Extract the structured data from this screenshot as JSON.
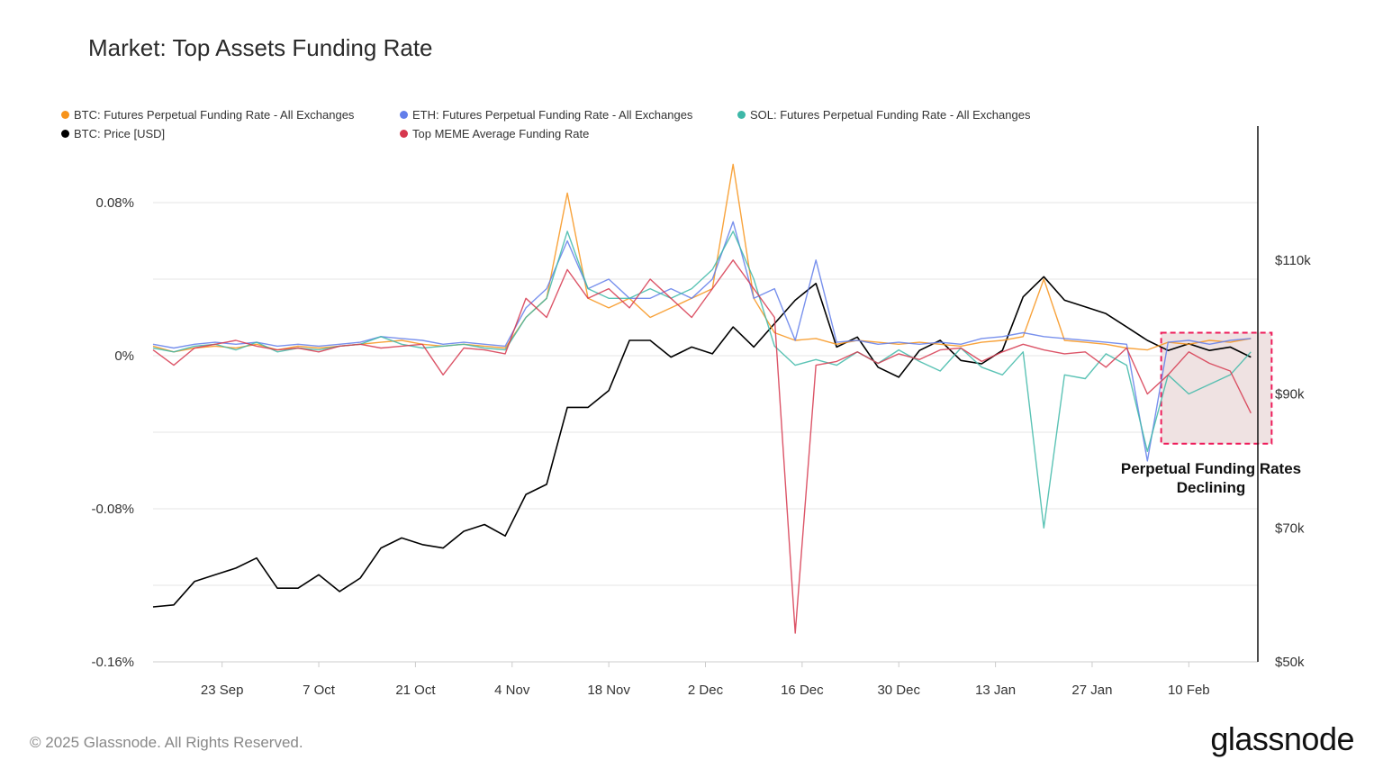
{
  "chart_data": {
    "type": "line",
    "title": "Market: Top Assets Funding Rate",
    "xlim": [
      "2024-09-13",
      "2025-02-20"
    ],
    "x_tick_labels": [
      {
        "date": "2024-09-23",
        "label": "23 Sep"
      },
      {
        "date": "2024-10-07",
        "label": "7 Oct"
      },
      {
        "date": "2024-10-21",
        "label": "21 Oct"
      },
      {
        "date": "2024-11-04",
        "label": "4 Nov"
      },
      {
        "date": "2024-11-18",
        "label": "18 Nov"
      },
      {
        "date": "2024-12-02",
        "label": "2 Dec"
      },
      {
        "date": "2024-12-16",
        "label": "16 Dec"
      },
      {
        "date": "2024-12-30",
        "label": "30 Dec"
      },
      {
        "date": "2025-01-13",
        "label": "13 Jan"
      },
      {
        "date": "2025-01-27",
        "label": "27 Jan"
      },
      {
        "date": "2025-02-10",
        "label": "10 Feb"
      }
    ],
    "y_left": {
      "lim": [
        -0.16,
        0.12
      ],
      "ticks": [
        {
          "value": 0.08,
          "label": "0.08%"
        },
        {
          "value": 0,
          "label": "0%"
        },
        {
          "value": -0.08,
          "label": "-0.08%"
        },
        {
          "value": -0.16,
          "label": "-0.16%"
        }
      ],
      "grid": [
        0.08,
        0.04,
        0,
        -0.04,
        -0.08,
        -0.12,
        -0.16
      ]
    },
    "y_right": {
      "lim": [
        50,
        130
      ],
      "ticks": [
        {
          "value": 110,
          "label": "$110k"
        },
        {
          "value": 90,
          "label": "$90k"
        },
        {
          "value": 70,
          "label": "$70k"
        },
        {
          "value": 50,
          "label": "$50k"
        }
      ]
    },
    "grid": true,
    "legend_position": "top",
    "dates": [
      "2024-09-13",
      "2024-09-16",
      "2024-09-19",
      "2024-09-22",
      "2024-09-25",
      "2024-09-28",
      "2024-10-01",
      "2024-10-04",
      "2024-10-07",
      "2024-10-10",
      "2024-10-13",
      "2024-10-16",
      "2024-10-19",
      "2024-10-22",
      "2024-10-25",
      "2024-10-28",
      "2024-10-31",
      "2024-11-03",
      "2024-11-06",
      "2024-11-09",
      "2024-11-12",
      "2024-11-15",
      "2024-11-18",
      "2024-11-21",
      "2024-11-24",
      "2024-11-27",
      "2024-11-30",
      "2024-12-03",
      "2024-12-06",
      "2024-12-09",
      "2024-12-12",
      "2024-12-15",
      "2024-12-18",
      "2024-12-21",
      "2024-12-24",
      "2024-12-27",
      "2024-12-30",
      "2025-01-02",
      "2025-01-05",
      "2025-01-08",
      "2025-01-11",
      "2025-01-14",
      "2025-01-17",
      "2025-01-20",
      "2025-01-23",
      "2025-01-26",
      "2025-01-29",
      "2025-02-01",
      "2025-02-04",
      "2025-02-07",
      "2025-02-10",
      "2025-02-13",
      "2025-02-16",
      "2025-02-19"
    ],
    "series": [
      {
        "name": "BTC: Futures Perpetual Funding Rate - All Exchanges",
        "axis": "left",
        "color": "#f7931a",
        "values": [
          0.005,
          0.002,
          0.004,
          0.005,
          0.004,
          0.006,
          0.003,
          0.005,
          0.004,
          0.005,
          0.006,
          0.007,
          0.008,
          0.006,
          0.005,
          0.006,
          0.005,
          0.004,
          0.02,
          0.03,
          0.085,
          0.03,
          0.025,
          0.03,
          0.02,
          0.025,
          0.03,
          0.035,
          0.1,
          0.03,
          0.012,
          0.008,
          0.009,
          0.006,
          0.008,
          0.007,
          0.006,
          0.007,
          0.006,
          0.005,
          0.007,
          0.008,
          0.01,
          0.04,
          0.008,
          0.007,
          0.006,
          0.004,
          0.003,
          0.007,
          0.006,
          0.008,
          0.007,
          0.009
        ]
      },
      {
        "name": "ETH: Futures Perpetual Funding Rate - All Exchanges",
        "axis": "left",
        "color": "#627eea",
        "values": [
          0.006,
          0.004,
          0.006,
          0.007,
          0.006,
          0.007,
          0.005,
          0.006,
          0.005,
          0.006,
          0.007,
          0.01,
          0.009,
          0.008,
          0.006,
          0.007,
          0.006,
          0.005,
          0.025,
          0.035,
          0.06,
          0.035,
          0.04,
          0.03,
          0.03,
          0.035,
          0.03,
          0.04,
          0.07,
          0.03,
          0.035,
          0.008,
          0.05,
          0.007,
          0.008,
          0.006,
          0.007,
          0.006,
          0.007,
          0.006,
          0.009,
          0.01,
          0.012,
          0.01,
          0.009,
          0.008,
          0.007,
          0.006,
          -0.055,
          0.007,
          0.008,
          0.006,
          0.008,
          0.009
        ]
      },
      {
        "name": "SOL: Futures Perpetual Funding Rate - All Exchanges",
        "axis": "left",
        "color": "#3eb8a8",
        "values": [
          0.004,
          0.002,
          0.005,
          0.006,
          0.003,
          0.007,
          0.002,
          0.004,
          0.003,
          0.005,
          0.006,
          0.01,
          0.006,
          0.004,
          0.005,
          0.006,
          0.004,
          0.003,
          0.02,
          0.03,
          0.065,
          0.035,
          0.03,
          0.03,
          0.035,
          0.03,
          0.035,
          0.045,
          0.065,
          0.04,
          0.005,
          -0.005,
          -0.002,
          -0.005,
          0.002,
          -0.004,
          0.003,
          -0.003,
          -0.008,
          0.004,
          -0.006,
          -0.01,
          0.002,
          -0.09,
          -0.01,
          -0.012,
          0.001,
          -0.005,
          -0.05,
          -0.01,
          -0.02,
          -0.015,
          -0.01,
          0.002
        ]
      },
      {
        "name": "BTC: Price [USD]",
        "axis": "right",
        "color": "#000000",
        "unit": "$k",
        "values": [
          58.2,
          58.5,
          62,
          63,
          64,
          65.5,
          61,
          61,
          63,
          60.5,
          62.5,
          67,
          68.5,
          67.5,
          67,
          69.5,
          70.5,
          68.8,
          75,
          76.5,
          88,
          88,
          90.5,
          98,
          98,
          95.5,
          97,
          96,
          100,
          97,
          100.5,
          104,
          106.5,
          97,
          98.5,
          94,
          92.5,
          96.5,
          98,
          95,
          94.5,
          96.5,
          104.5,
          107.5,
          104,
          103,
          102,
          100,
          98,
          96.5,
          97.5,
          96.5,
          97,
          95.5
        ]
      },
      {
        "name": "Top MEME Average Funding Rate",
        "axis": "left",
        "color": "#d6374e",
        "values": [
          0.003,
          -0.005,
          0.004,
          0.006,
          0.008,
          0.005,
          0.003,
          0.004,
          0.002,
          0.005,
          0.006,
          0.004,
          0.005,
          0.006,
          -0.01,
          0.004,
          0.003,
          0.001,
          0.03,
          0.02,
          0.045,
          0.03,
          0.035,
          0.025,
          0.04,
          0.03,
          0.02,
          0.035,
          0.05,
          0.035,
          0.02,
          -0.145,
          -0.005,
          -0.003,
          0.002,
          -0.004,
          0.001,
          -0.002,
          0.003,
          0.004,
          -0.003,
          0.002,
          0.006,
          0.003,
          0.001,
          0.002,
          -0.006,
          0.004,
          -0.02,
          -0.01,
          0.002,
          -0.004,
          -0.008,
          -0.03
        ]
      }
    ],
    "annotation": {
      "text_line1": "Perpetual Funding Rates",
      "text_line2": "Declining",
      "box": {
        "from": "2025-02-06",
        "to": "2025-02-22",
        "y_top": 0.012,
        "y_bottom": -0.046
      },
      "border_color": "#ee1c5a",
      "fill_color": "#efe2e2"
    }
  },
  "legend": [
    {
      "label": "BTC: Futures Perpetual Funding Rate - All Exchanges",
      "color": "#f7931a"
    },
    {
      "label": "ETH: Futures Perpetual Funding Rate - All Exchanges",
      "color": "#627eea"
    },
    {
      "label": "SOL: Futures Perpetual Funding Rate - All Exchanges",
      "color": "#3eb8a8"
    },
    {
      "label": "BTC: Price [USD]",
      "color": "#000000"
    },
    {
      "label": "Top MEME Average Funding Rate",
      "color": "#d6374e"
    }
  ],
  "footer": {
    "copyright": "© 2025 Glassnode. All Rights Reserved.",
    "logo": "glassnode"
  }
}
